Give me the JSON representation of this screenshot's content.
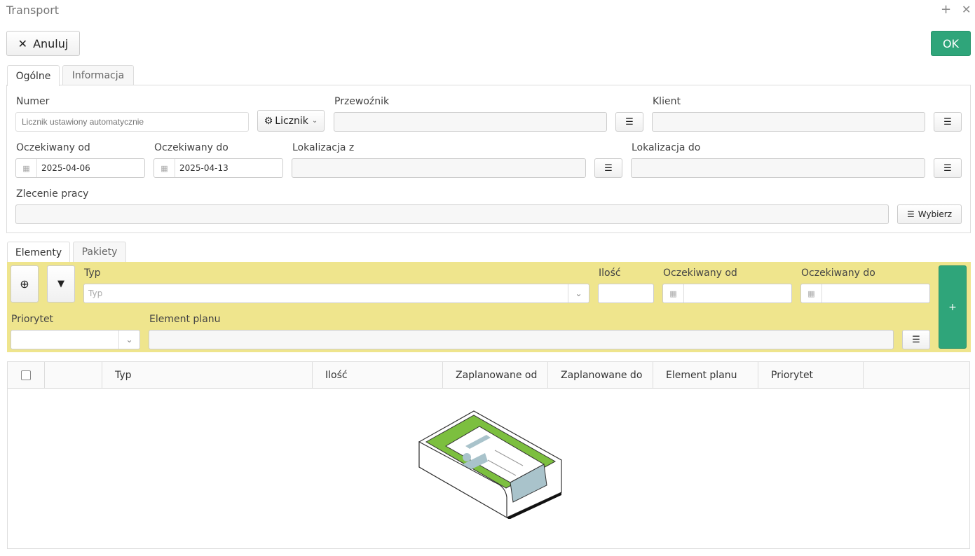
{
  "window": {
    "title": "Transport"
  },
  "toolbar": {
    "cancel_label": "Anuluj",
    "ok_label": "OK",
    "ok_color": "#2fa57a"
  },
  "tabs": [
    {
      "label": "Ogólne",
      "active": true
    },
    {
      "label": "Informacja"
    }
  ],
  "form": {
    "numer": {
      "label": "Numer",
      "placeholder": "Licznik ustawiony automatycznie"
    },
    "licznik_label": "Licznik",
    "przewoznik": {
      "label": "Przewoźnik",
      "value": ""
    },
    "klient": {
      "label": "Klient",
      "value": ""
    },
    "oczekiwany_od": {
      "label": "Oczekiwany od",
      "value": "2025-04-06"
    },
    "oczekiwany_do": {
      "label": "Oczekiwany do",
      "value": "2025-04-13"
    },
    "lokalizacja_z": {
      "label": "Lokalizacja z",
      "value": ""
    },
    "lokalizacja_do": {
      "label": "Lokalizacja do",
      "value": ""
    },
    "zlecenie": {
      "label": "Zlecenie pracy",
      "value": ""
    },
    "wybierz_label": "Wybierz"
  },
  "subtabs": [
    {
      "label": "Elementy",
      "active": true
    },
    {
      "label": "Pakiety"
    }
  ],
  "filter": {
    "bg_color": "#efe58d",
    "typ": {
      "label": "Typ",
      "placeholder": "Typ"
    },
    "ilosc": {
      "label": "Ilość"
    },
    "oczekiwany_od": {
      "label": "Oczekiwany od"
    },
    "oczekiwany_do": {
      "label": "Oczekiwany do"
    },
    "priorytet": {
      "label": "Priorytet"
    },
    "element_planu": {
      "label": "Element planu"
    },
    "add_label": "+"
  },
  "table": {
    "columns": [
      "",
      "Typ",
      "Ilość",
      "Zaplanowane od",
      "Zaplanowane do",
      "Element planu",
      "Priorytet",
      ""
    ],
    "rows": []
  }
}
